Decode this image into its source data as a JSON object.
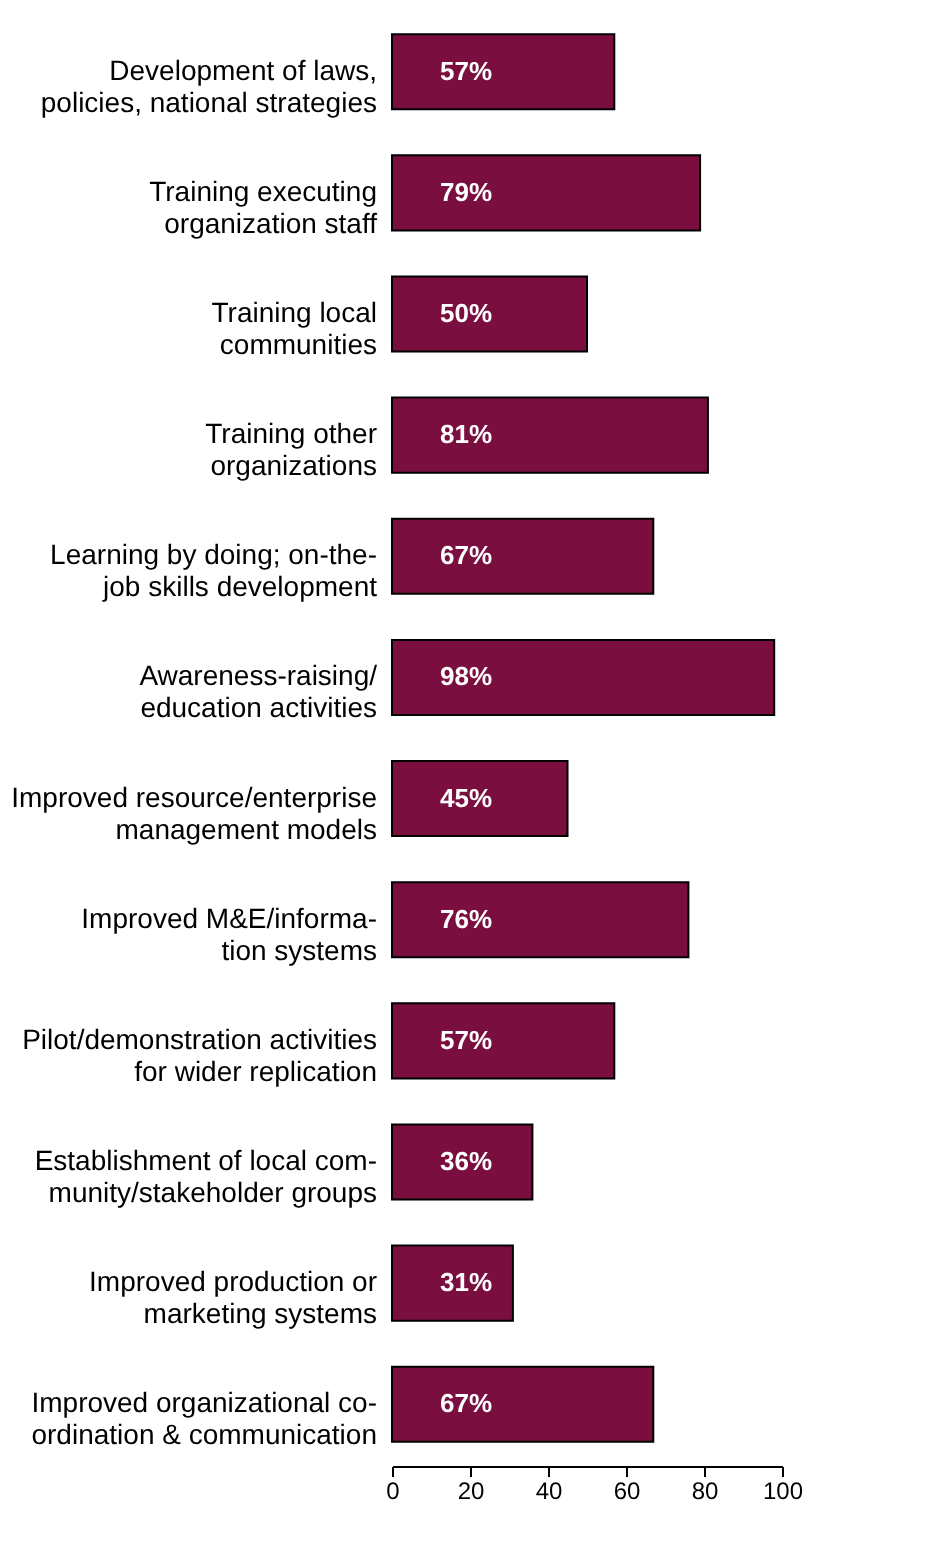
{
  "chart_data": {
    "type": "bar",
    "orientation": "horizontal",
    "categories": [
      "Development of laws,\npolicies, national strategies",
      "Training executing\norganization staff",
      "Training local\ncommunities",
      "Training other\norganizations",
      "Learning by doing; on-the-\njob skills development",
      "Awareness-raising/\neducation activities",
      "Improved resource/enterprise\nmanagement models",
      "Improved M&E/informa-\ntion systems",
      "Pilot/demonstration activities\nfor wider replication",
      "Establishment of local com-\nmunity/stakeholder groups",
      "Improved production or\nmarketing systems",
      "Improved organizational co-\nordination & communication"
    ],
    "values": [
      57,
      79,
      50,
      81,
      67,
      98,
      45,
      76,
      57,
      36,
      31,
      67
    ],
    "value_labels": [
      "57%",
      "79%",
      "50%",
      "81%",
      "67%",
      "98%",
      "45%",
      "76%",
      "57%",
      "36%",
      "31%",
      "67%"
    ],
    "color": "#7a0f3f",
    "xlim": [
      0,
      100
    ],
    "xticks": [
      0,
      20,
      40,
      60,
      80,
      100
    ],
    "grid": false
  }
}
